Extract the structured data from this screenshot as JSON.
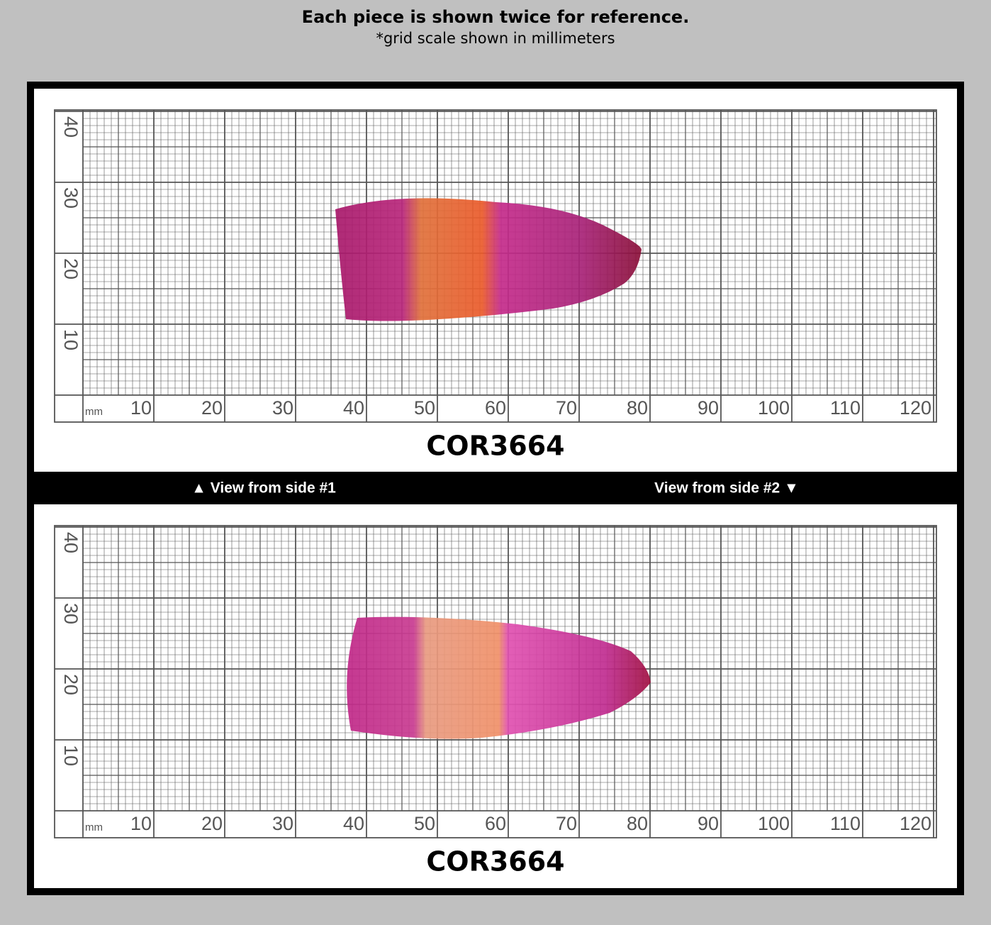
{
  "header": {
    "title": "Each piece is shown twice for reference.",
    "subtitle": "*grid scale shown in millimeters"
  },
  "panels": [
    {
      "code": "COR3664",
      "unit": "mm",
      "x_labels": [
        10,
        20,
        30,
        40,
        50,
        60,
        70,
        80,
        90,
        100,
        110,
        120
      ],
      "y_labels": [
        40,
        30,
        20,
        10
      ]
    },
    {
      "code": "COR3664",
      "unit": "mm",
      "x_labels": [
        10,
        20,
        30,
        40,
        50,
        60,
        70,
        80,
        90,
        100,
        110,
        120
      ],
      "y_labels": [
        40,
        30,
        20,
        10
      ]
    }
  ],
  "divider": {
    "left": "▲ View from side #1",
    "right": "View from side #2 ▼"
  }
}
